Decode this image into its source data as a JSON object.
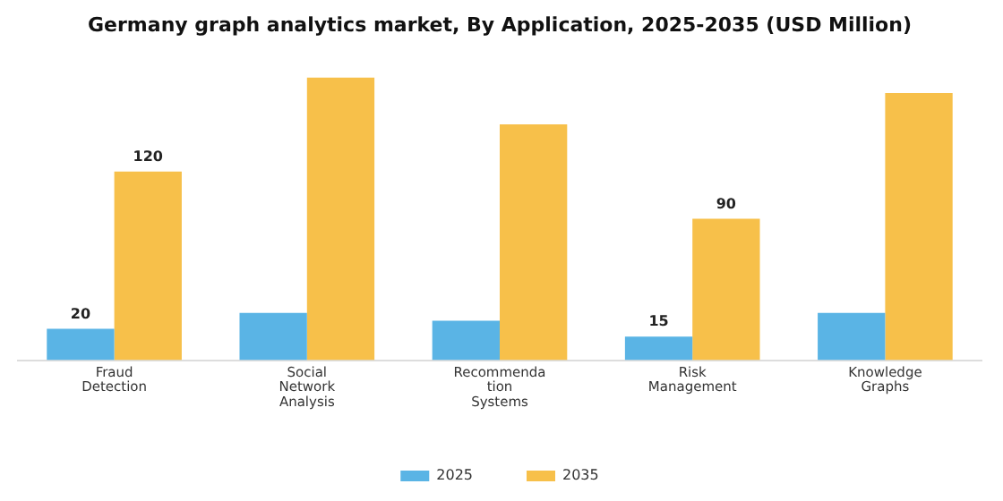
{
  "chart_data": {
    "type": "bar",
    "title": "Germany graph analytics market, By Application, 2025-2035 (USD Million)",
    "categories": [
      "Fraud Detection",
      "Social Network Analysis",
      "Recommendation Systems",
      "Risk Management",
      "Knowledge Graphs"
    ],
    "series": [
      {
        "name": "2025",
        "color": "#5ab4e5",
        "values": [
          20,
          30,
          25,
          15,
          30
        ],
        "value_labels": [
          "20",
          null,
          null,
          "15",
          null
        ]
      },
      {
        "name": "2035",
        "color": "#f7c04a",
        "values": [
          120,
          180,
          150,
          90,
          170
        ],
        "value_labels": [
          "120",
          null,
          null,
          "90",
          null
        ]
      }
    ],
    "tick_labels": "x",
    "grid": false,
    "legend": "bottom"
  }
}
